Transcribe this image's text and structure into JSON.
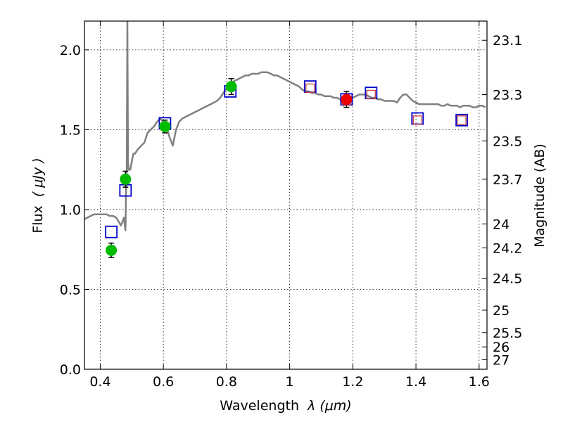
{
  "chart_data": {
    "type": "scatter",
    "title": "",
    "xlabel_main": "Wavelength",
    "xlabel_math": "λ (μm)",
    "ylabel_main": "Flux",
    "ylabel_math": "( μJy )",
    "ylabel_right": "Magnitude (AB)",
    "xlim": [
      0.35,
      1.625
    ],
    "ylim": [
      0.0,
      2.18
    ],
    "grid": true,
    "x_ticks": [
      0.4,
      0.6,
      0.8,
      1.0,
      1.2,
      1.4,
      1.6
    ],
    "x_tick_labels": [
      "0.4",
      "0.6",
      "0.8",
      "1",
      "1.2",
      "1.4",
      "1.6"
    ],
    "y_ticks": [
      0.0,
      0.5,
      1.0,
      1.5,
      2.0
    ],
    "y_tick_labels": [
      "0.0",
      "0.5",
      "1.0",
      "1.5",
      "2.0"
    ],
    "right_ticks": [
      {
        "label": "23.1",
        "flux": 2.06
      },
      {
        "label": "23.3",
        "flux": 1.72
      },
      {
        "label": "23.5",
        "flux": 1.43
      },
      {
        "label": "23.7",
        "flux": 1.19
      },
      {
        "label": "24",
        "flux": 0.91
      },
      {
        "label": "24.2",
        "flux": 0.76
      },
      {
        "label": "24.5",
        "flux": 0.57
      },
      {
        "label": "25",
        "flux": 0.37
      },
      {
        "label": "25.5",
        "flux": 0.23
      },
      {
        "label": "26",
        "flux": 0.14
      },
      {
        "label": "27",
        "flux": 0.06
      }
    ],
    "series": [
      {
        "style": "line",
        "color": "#808080",
        "x": [
          0.35,
          0.36,
          0.37,
          0.38,
          0.39,
          0.4,
          0.41,
          0.42,
          0.43,
          0.44,
          0.45,
          0.46,
          0.465,
          0.47,
          0.475,
          0.478,
          0.48,
          0.482,
          0.484,
          0.486,
          0.488,
          0.49,
          0.495,
          0.5,
          0.505,
          0.51,
          0.52,
          0.53,
          0.54,
          0.55,
          0.56,
          0.57,
          0.58,
          0.59,
          0.6,
          0.61,
          0.62,
          0.63,
          0.64,
          0.65,
          0.66,
          0.67,
          0.68,
          0.69,
          0.7,
          0.71,
          0.72,
          0.73,
          0.74,
          0.75,
          0.76,
          0.77,
          0.78,
          0.79,
          0.8,
          0.81,
          0.82,
          0.83,
          0.84,
          0.85,
          0.86,
          0.87,
          0.88,
          0.89,
          0.9,
          0.91,
          0.92,
          0.93,
          0.94,
          0.95,
          0.96,
          0.97,
          0.98,
          0.99,
          1.0,
          1.01,
          1.02,
          1.03,
          1.04,
          1.05,
          1.06,
          1.07,
          1.08,
          1.09,
          1.1,
          1.11,
          1.12,
          1.13,
          1.14,
          1.15,
          1.16,
          1.17,
          1.18,
          1.19,
          1.2,
          1.21,
          1.22,
          1.23,
          1.24,
          1.25,
          1.26,
          1.27,
          1.28,
          1.29,
          1.3,
          1.31,
          1.32,
          1.33,
          1.34,
          1.35,
          1.36,
          1.37,
          1.38,
          1.39,
          1.4,
          1.41,
          1.42,
          1.43,
          1.44,
          1.45,
          1.46,
          1.47,
          1.48,
          1.49,
          1.5,
          1.51,
          1.52,
          1.53,
          1.54,
          1.55,
          1.56,
          1.57,
          1.58,
          1.59,
          1.6,
          1.61,
          1.62
        ],
        "y": [
          0.94,
          0.95,
          0.96,
          0.97,
          0.97,
          0.97,
          0.97,
          0.97,
          0.96,
          0.96,
          0.95,
          0.92,
          0.9,
          0.92,
          0.95,
          0.9,
          0.87,
          1.15,
          1.25,
          2.18,
          1.3,
          1.25,
          1.25,
          1.3,
          1.35,
          1.35,
          1.38,
          1.4,
          1.42,
          1.48,
          1.5,
          1.52,
          1.55,
          1.57,
          1.55,
          1.52,
          1.45,
          1.4,
          1.5,
          1.55,
          1.57,
          1.58,
          1.59,
          1.6,
          1.61,
          1.62,
          1.63,
          1.64,
          1.65,
          1.66,
          1.67,
          1.68,
          1.7,
          1.73,
          1.76,
          1.78,
          1.8,
          1.81,
          1.82,
          1.83,
          1.84,
          1.84,
          1.85,
          1.85,
          1.85,
          1.86,
          1.86,
          1.86,
          1.85,
          1.84,
          1.84,
          1.83,
          1.82,
          1.81,
          1.8,
          1.79,
          1.78,
          1.77,
          1.75,
          1.74,
          1.74,
          1.73,
          1.73,
          1.72,
          1.72,
          1.71,
          1.71,
          1.71,
          1.7,
          1.7,
          1.69,
          1.65,
          1.69,
          1.69,
          1.7,
          1.71,
          1.72,
          1.72,
          1.72,
          1.71,
          1.7,
          1.7,
          1.69,
          1.69,
          1.68,
          1.68,
          1.68,
          1.68,
          1.67,
          1.7,
          1.72,
          1.72,
          1.7,
          1.68,
          1.67,
          1.66,
          1.66,
          1.66,
          1.66,
          1.66,
          1.66,
          1.66,
          1.65,
          1.65,
          1.66,
          1.65,
          1.65,
          1.65,
          1.64,
          1.65,
          1.65,
          1.65,
          1.64,
          1.64,
          1.65,
          1.65,
          1.64
        ]
      },
      {
        "style": "open-square",
        "color": "#0000cc",
        "x": [
          0.435,
          0.48,
          0.605,
          0.812,
          1.065,
          1.18,
          1.258,
          1.405,
          1.545
        ],
        "y": [
          0.86,
          1.12,
          1.54,
          1.74,
          1.77,
          1.69,
          1.73,
          1.57,
          1.56
        ]
      },
      {
        "style": "small-open-square",
        "color": "#cc4444",
        "x": [
          1.065,
          1.18,
          1.258,
          1.405,
          1.545
        ],
        "y": [
          1.76,
          1.68,
          1.72,
          1.56,
          1.56
        ]
      },
      {
        "style": "filled-circle",
        "color": "#00bb00",
        "x": [
          0.435,
          0.48,
          0.605,
          0.815
        ],
        "y": [
          0.745,
          1.19,
          1.52,
          1.77
        ],
        "err": [
          0.045,
          0.05,
          0.04,
          0.05
        ]
      },
      {
        "style": "filled-circle",
        "color": "#ee0000",
        "x": [
          1.18
        ],
        "y": [
          1.69
        ],
        "err": [
          0.05
        ]
      }
    ]
  }
}
